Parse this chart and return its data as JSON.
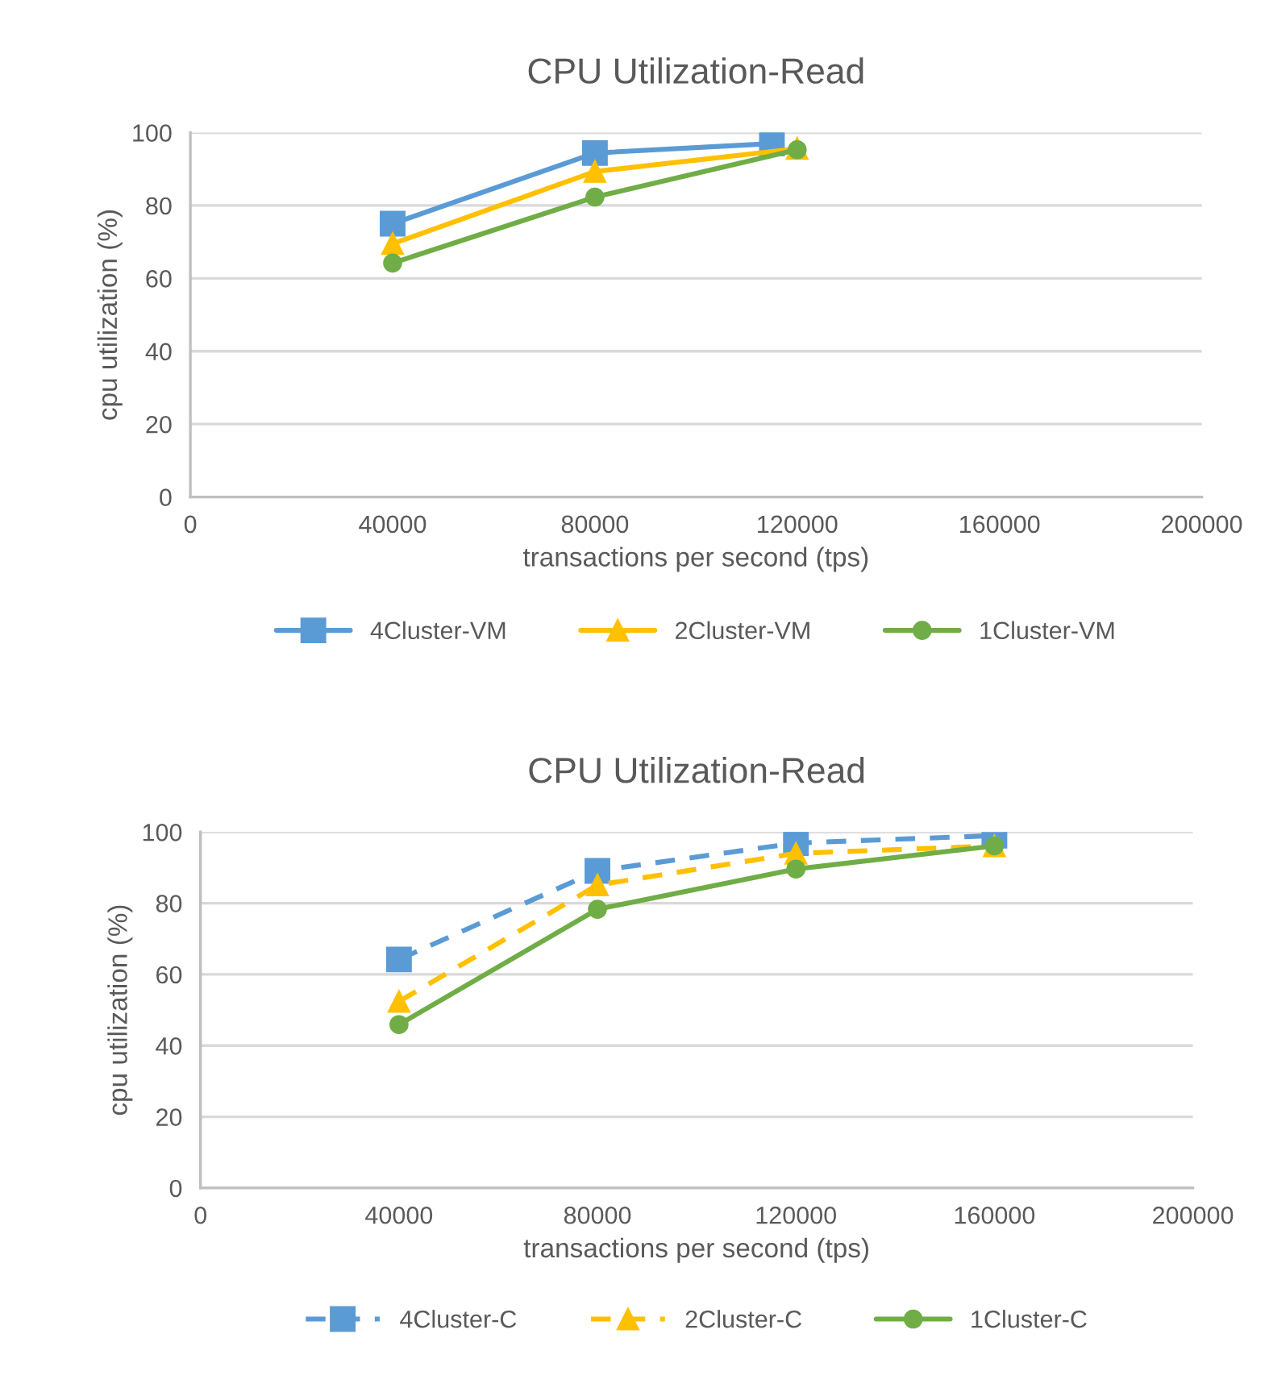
{
  "chart_data": [
    {
      "type": "line",
      "title": "CPU Utilization-Read",
      "xlabel": "transactions per second (tps)",
      "ylabel": "cpu utilization (%)",
      "xlim": [
        0,
        200000
      ],
      "xticks": [
        0,
        40000,
        80000,
        120000,
        160000,
        200000
      ],
      "ylim": [
        0,
        100
      ],
      "yticks": [
        0,
        20,
        40,
        60,
        80,
        100
      ],
      "grid": "y",
      "legend": "bottom",
      "series": [
        {
          "name": "4Cluster-VM",
          "color": "#5b9bd5",
          "marker": "square",
          "line_style": "solid",
          "x": [
            40000,
            80000,
            115000
          ],
          "values": [
            75,
            94.4,
            97
          ]
        },
        {
          "name": "2Cluster-VM",
          "color": "#ffc000",
          "marker": "triangle",
          "line_style": "solid",
          "x": [
            40000,
            80000,
            120000
          ],
          "values": [
            69.5,
            89.3,
            95.6
          ]
        },
        {
          "name": "1Cluster-VM",
          "color": "#70ad47",
          "marker": "circle",
          "line_style": "solid",
          "x": [
            40000,
            80000,
            120000
          ],
          "values": [
            64.2,
            82.3,
            95.3
          ]
        }
      ]
    },
    {
      "type": "line",
      "title": "CPU Utilization-Read",
      "xlabel": "transactions per second (tps)",
      "ylabel": "cpu utilization (%)",
      "xlim": [
        0,
        200000
      ],
      "xticks": [
        0,
        40000,
        80000,
        120000,
        160000,
        200000
      ],
      "ylim": [
        0,
        100
      ],
      "yticks": [
        0,
        20,
        40,
        60,
        80,
        100
      ],
      "grid": "y",
      "legend": "bottom",
      "series": [
        {
          "name": "4Cluster-C",
          "color": "#5b9bd5",
          "marker": "square",
          "line_style": "dashed",
          "x": [
            40000,
            80000,
            120000,
            160000
          ],
          "values": [
            64.2,
            89.1,
            96.9,
            99
          ]
        },
        {
          "name": "2Cluster-C",
          "color": "#ffc000",
          "marker": "triangle",
          "line_style": "dashed",
          "x": [
            40000,
            80000,
            120000,
            160000
          ],
          "values": [
            52.4,
            85.1,
            94.0,
            96.1
          ]
        },
        {
          "name": "1Cluster-C",
          "color": "#70ad47",
          "marker": "circle",
          "line_style": "solid",
          "x": [
            40000,
            80000,
            120000,
            160000
          ],
          "values": [
            45.9,
            78.3,
            89.6,
            96.1
          ]
        }
      ]
    }
  ]
}
